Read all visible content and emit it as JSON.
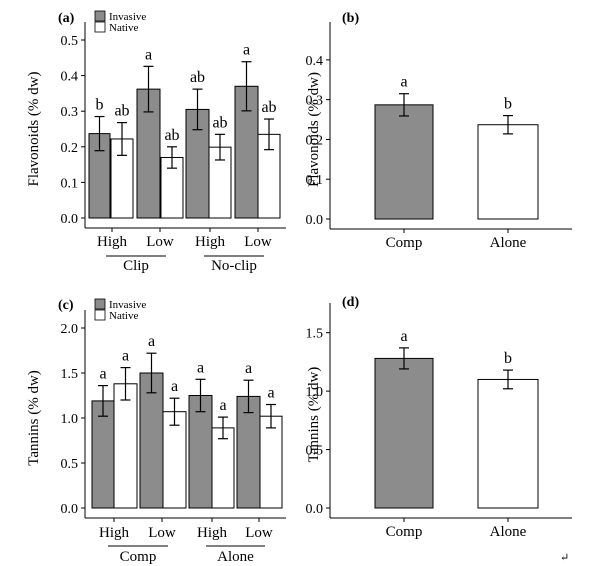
{
  "colors": {
    "invasive": "#8c8c8c",
    "native": "#ffffff",
    "stroke": "#000000"
  },
  "chart_data": [
    {
      "id": "a",
      "type": "bar",
      "panel_label": "(a)",
      "ylabel": "Flavonoids (% dw)",
      "ylim": [
        0,
        0.5
      ],
      "yticks": [
        0.0,
        0.1,
        0.2,
        0.3,
        0.4,
        0.5
      ],
      "ytick_labels": [
        "0.0",
        "0.1",
        "0.2",
        "0.3",
        "0.4",
        "0.5"
      ],
      "legend": {
        "placement": "top-left",
        "entries": [
          "Invasive",
          "Native"
        ]
      },
      "categories": [
        "High",
        "Low",
        "High",
        "Low"
      ],
      "groups": [
        {
          "label": "Clip",
          "span": [
            0,
            1
          ]
        },
        {
          "label": "No-clip",
          "span": [
            2,
            3
          ]
        }
      ],
      "series": [
        {
          "name": "Invasive",
          "values": [
            0.237,
            0.362,
            0.305,
            0.37
          ],
          "errors": [
            0.048,
            0.064,
            0.057,
            0.069
          ],
          "labels": [
            "b",
            "a",
            "ab",
            "a"
          ]
        },
        {
          "name": "Native",
          "values": [
            0.222,
            0.17,
            0.199,
            0.235
          ],
          "errors": [
            0.046,
            0.03,
            0.036,
            0.043
          ],
          "labels": [
            "ab",
            "ab",
            "ab",
            "ab"
          ]
        }
      ]
    },
    {
      "id": "b",
      "type": "bar",
      "panel_label": "(b)",
      "ylabel": "Flavonoids (% dw)",
      "ylim": [
        0,
        0.45
      ],
      "yticks": [
        0.0,
        0.1,
        0.2,
        0.3,
        0.4
      ],
      "ytick_labels": [
        "0.0",
        "0.1",
        "0.2",
        "0.3",
        "0.4"
      ],
      "categories": [
        "Comp",
        "Alone"
      ],
      "values": [
        0.287,
        0.237
      ],
      "errors": [
        0.028,
        0.023
      ],
      "labels": [
        "a",
        "b"
      ],
      "fills": [
        "invasive",
        "native"
      ]
    },
    {
      "id": "c",
      "type": "bar",
      "panel_label": "(c)",
      "ylabel": "Tannins (% dw)",
      "ylim": [
        0,
        2.0
      ],
      "yticks": [
        0.0,
        0.5,
        1.0,
        1.5,
        2.0
      ],
      "ytick_labels": [
        "0.0",
        "0.5",
        "1.0",
        "1.5",
        "2.0"
      ],
      "legend": {
        "placement": "top-left",
        "entries": [
          "Invasive",
          "Native"
        ]
      },
      "categories": [
        "High",
        "Low",
        "High",
        "Low"
      ],
      "groups": [
        {
          "label": "Comp",
          "span": [
            0,
            1
          ]
        },
        {
          "label": "Alone",
          "span": [
            2,
            3
          ]
        }
      ],
      "series": [
        {
          "name": "Invasive",
          "values": [
            1.19,
            1.5,
            1.25,
            1.24
          ],
          "errors": [
            0.17,
            0.22,
            0.18,
            0.18
          ],
          "labels": [
            "a",
            "a",
            "a",
            "a"
          ]
        },
        {
          "name": "Native",
          "values": [
            1.38,
            1.07,
            0.89,
            1.02
          ],
          "errors": [
            0.18,
            0.15,
            0.12,
            0.13
          ],
          "labels": [
            "a",
            "a",
            "a",
            "a"
          ]
        }
      ]
    },
    {
      "id": "d",
      "type": "bar",
      "panel_label": "(d)",
      "ylabel": "Tannins (% dw)",
      "ylim": [
        0,
        1.6
      ],
      "yticks": [
        0.0,
        0.5,
        1.0,
        1.5
      ],
      "ytick_labels": [
        "0.0",
        "0.5",
        "1.0",
        "1.5"
      ],
      "categories": [
        "Comp",
        "Alone"
      ],
      "values": [
        1.28,
        1.1
      ],
      "errors": [
        0.09,
        0.08
      ],
      "labels": [
        "a",
        "b"
      ],
      "fills": [
        "invasive",
        "native"
      ]
    }
  ],
  "footer_mark": "↵"
}
